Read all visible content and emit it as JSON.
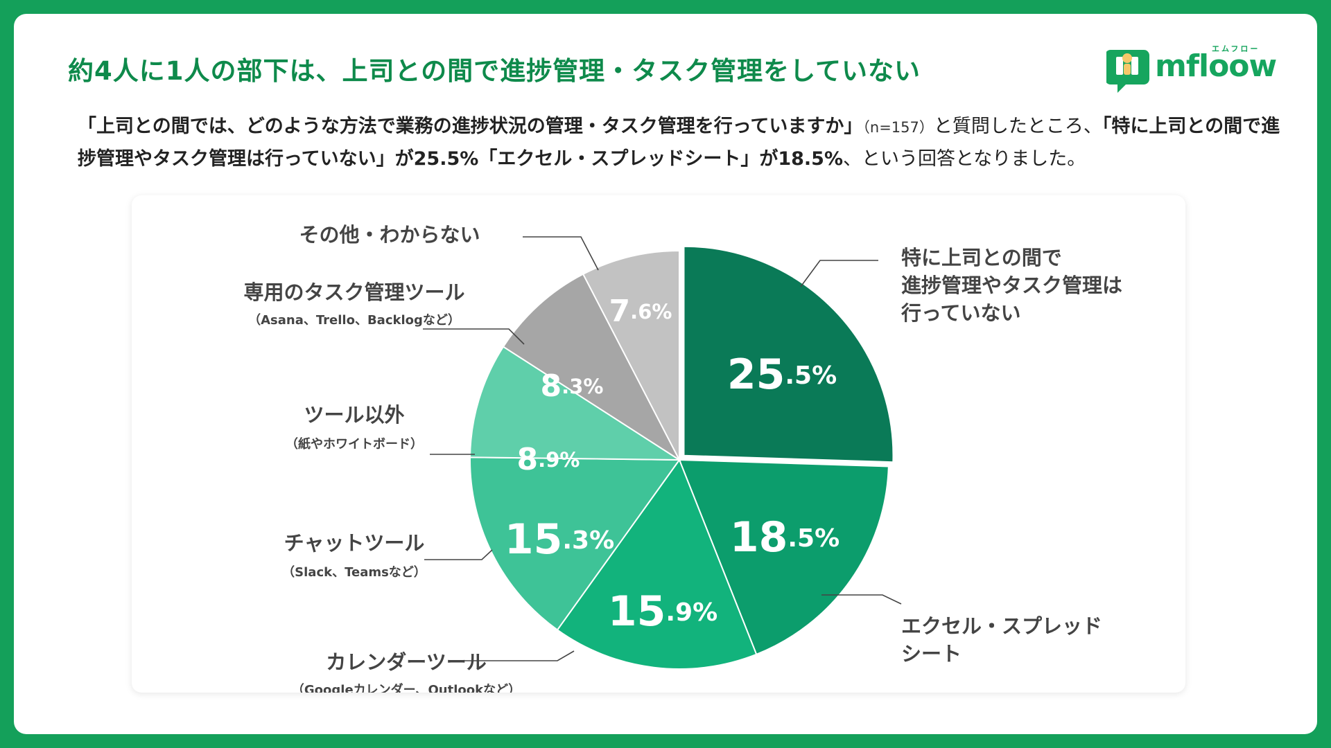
{
  "header": {
    "title": "約4人に1人の部下は、上司との間で進捗管理・タスク管理をしていない",
    "logo_text": "mfloow",
    "logo_kana": "エムフロー"
  },
  "description": {
    "question": "「上司との間では、どのような方法で業務の進捗状況の管理・タスク管理を行っていますか」",
    "sample": "（n=157）",
    "mid": "と質問したところ、",
    "answer1": "「特に上司との間で進捗管理やタスク管理は行っていない」が25.5%",
    "answer2": "「エクセル・スプレッドシート」が18.5%",
    "tail": "、という回答となりました。"
  },
  "colors": {
    "background": "#14a05a",
    "title": "#0e8a4b",
    "slices": [
      "#0a7a57",
      "#0c9d6c",
      "#12b37c",
      "#3ec397",
      "#5fcfaa",
      "#a6a6a6",
      "#c2c2c2"
    ]
  },
  "chart_data": {
    "type": "pie",
    "title": "",
    "start_angle_deg": 0,
    "direction": "clockwise",
    "slices": [
      {
        "name": "特に上司との間で進捗管理やタスク管理は行っていない",
        "label_lines": [
          "特に上司との間で",
          "進捗管理やタスク管理は",
          "行っていない"
        ],
        "sub": "",
        "value": 25.5,
        "int": "25",
        "dec": ".5%"
      },
      {
        "name": "エクセル・スプレッドシート",
        "label_lines": [
          "エクセル・スプレッド",
          "シート"
        ],
        "sub": "",
        "value": 18.5,
        "int": "18",
        "dec": ".5%"
      },
      {
        "name": "カレンダーツール",
        "label_lines": [
          "カレンダーツール"
        ],
        "sub": "（Googleカレンダー、Outlookなど）",
        "value": 15.9,
        "int": "15",
        "dec": ".9%"
      },
      {
        "name": "チャットツール",
        "label_lines": [
          "チャットツール"
        ],
        "sub": "（Slack、Teamsなど）",
        "value": 15.3,
        "int": "15",
        "dec": ".3%"
      },
      {
        "name": "ツール以外",
        "label_lines": [
          "ツール以外"
        ],
        "sub": "（紙やホワイトボード）",
        "value": 8.9,
        "int": "8",
        "dec": ".9%"
      },
      {
        "name": "専用のタスク管理ツール",
        "label_lines": [
          "専用のタスク管理ツール"
        ],
        "sub": "（Asana、Trello、Backlogなど）",
        "value": 8.3,
        "int": "8",
        "dec": ".3%"
      },
      {
        "name": "その他・わからない",
        "label_lines": [
          "その他・わからない"
        ],
        "sub": "",
        "value": 7.6,
        "int": "7",
        "dec": ".6%"
      }
    ]
  }
}
